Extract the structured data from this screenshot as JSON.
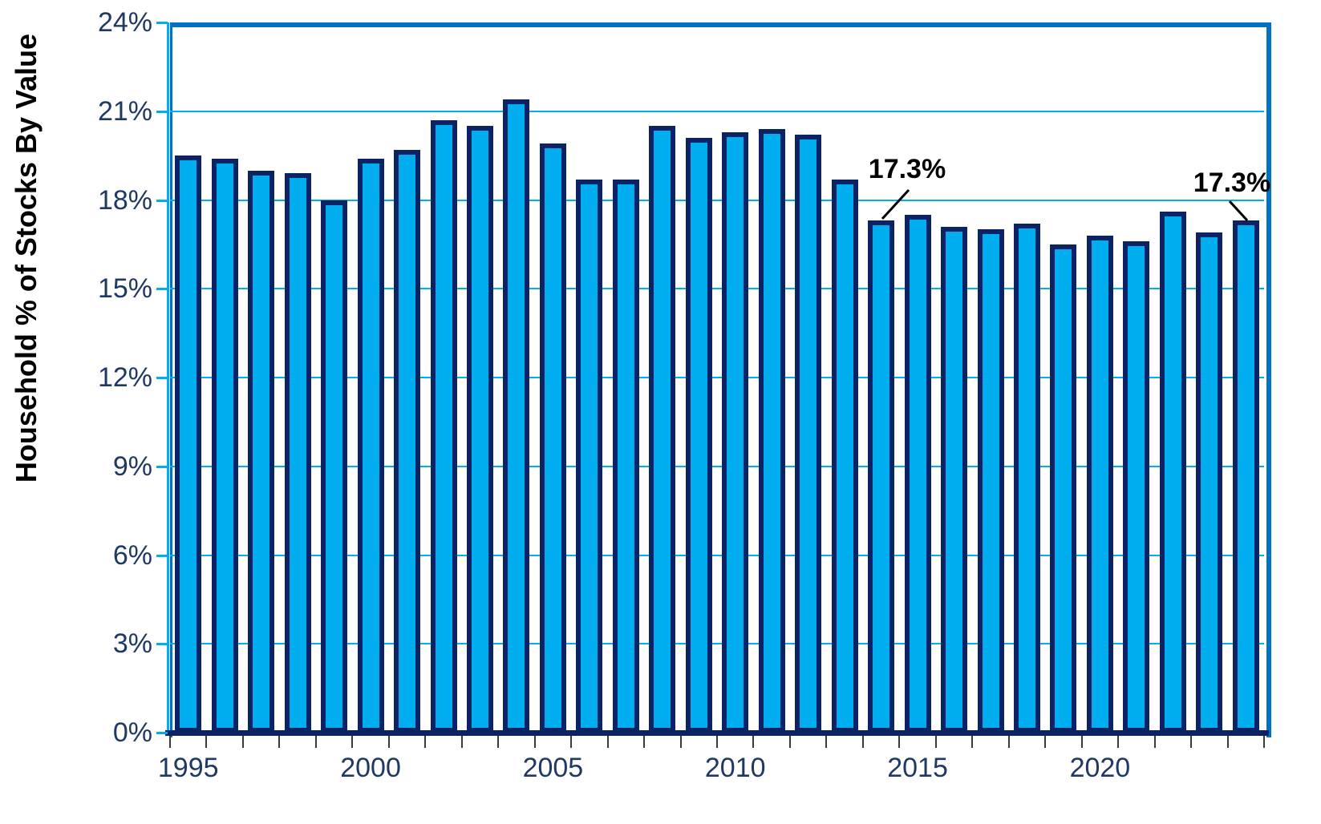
{
  "page": {
    "background": "#FFFFFF"
  },
  "chart_data": {
    "type": "bar",
    "title": "",
    "xlabel": "",
    "ylabel": "Household % of Stocks By Value",
    "categories": [
      "1995",
      "1996",
      "1997",
      "1998",
      "1999",
      "2000",
      "2001",
      "2002",
      "2003",
      "2004",
      "2005",
      "2006",
      "2007",
      "2008",
      "2009",
      "2010",
      "2011",
      "2012",
      "2013",
      "2014",
      "2015",
      "2016",
      "2017",
      "2018",
      "2019",
      "2020",
      "2021",
      "2022",
      "2023",
      "2024"
    ],
    "values": [
      19.5,
      19.4,
      19.0,
      18.9,
      18.0,
      19.4,
      19.7,
      20.7,
      20.5,
      21.4,
      19.9,
      18.7,
      18.7,
      20.5,
      20.1,
      20.3,
      20.4,
      20.2,
      18.7,
      17.3,
      17.5,
      17.1,
      17.0,
      17.2,
      16.5,
      16.8,
      16.6,
      17.6,
      16.9,
      17.3
    ],
    "ylim": [
      0,
      24
    ],
    "ytick_step": 3,
    "ytick_labels": [
      "0%",
      "3%",
      "6%",
      "9%",
      "12%",
      "15%",
      "18%",
      "21%",
      "24%"
    ],
    "xtick_labels": [
      "1995",
      "2000",
      "2005",
      "2010",
      "2015",
      "2020"
    ],
    "xtick_indices": [
      0,
      5,
      10,
      15,
      20,
      25
    ],
    "grid": true,
    "legend": false,
    "annotations": [
      {
        "text": "17.3%",
        "category": "2014",
        "value": 17.3
      },
      {
        "text": "17.3%",
        "category": "2024",
        "value": 17.3
      }
    ],
    "colors": {
      "bar_fill": "#00AEEF",
      "bar_border": "#0B2265",
      "gridline": "#00AEEF",
      "plot_border": "#0072C6",
      "x_axis_line": "#0B2265",
      "tick_label": "#1F3864",
      "axis_title": "#000000",
      "annotation_text": "#000000"
    }
  }
}
